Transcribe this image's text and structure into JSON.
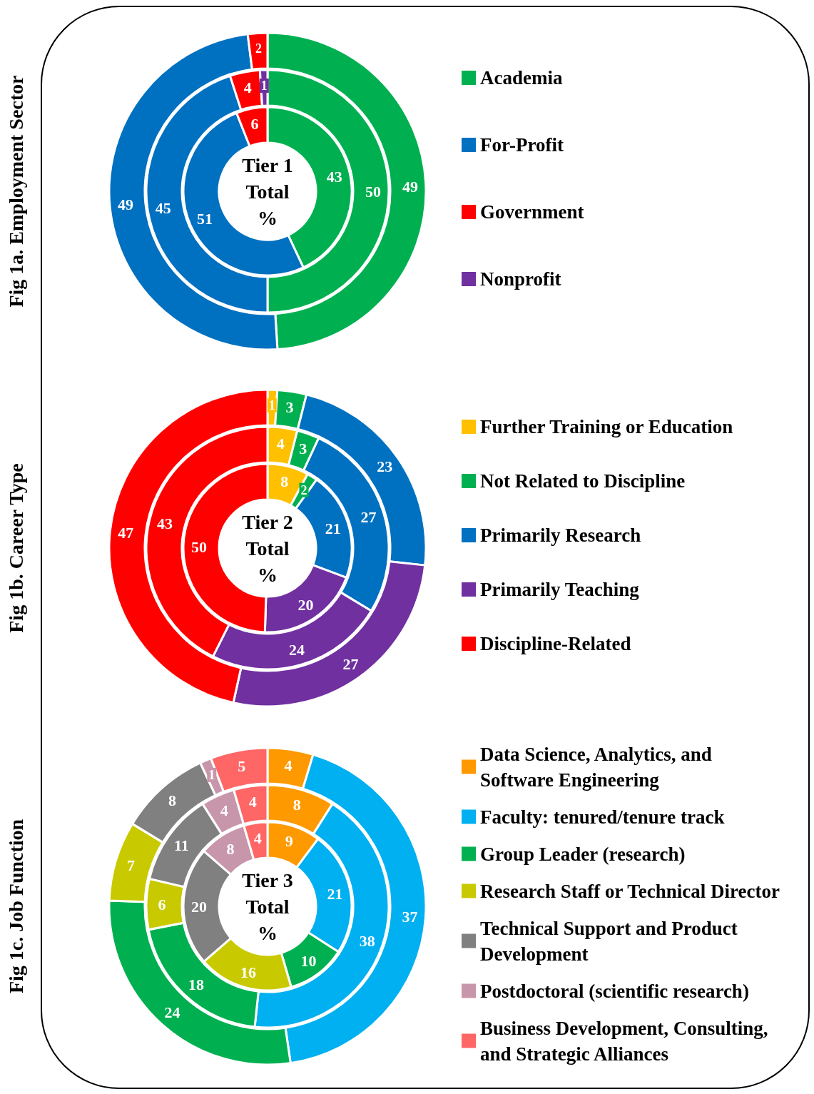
{
  "chart_data": [
    {
      "type": "donut",
      "title": "Fig 1a. Employment Sector",
      "annotations": [
        "Tier 1",
        "Total",
        "%"
      ],
      "legend": "right",
      "data_labels": true,
      "categories": [
        "Academia",
        "For-Profit",
        "Government",
        "Nonprofit"
      ],
      "colors": [
        "#00b050",
        "#0070c0",
        "#ff0000",
        "#7030a0"
      ],
      "series": [
        {
          "values": [
            43,
            51,
            6,
            null
          ]
        },
        {
          "values": [
            50,
            45,
            4,
            1
          ]
        },
        {
          "values": [
            49,
            49,
            2,
            null
          ]
        }
      ]
    },
    {
      "type": "donut",
      "title": "Fig 1b. Career Type",
      "annotations": [
        "Tier 2",
        "Total",
        "%"
      ],
      "legend": "right",
      "data_labels": true,
      "categories": [
        "Further Training or Education",
        "Not Related to Discipline",
        "Primarily Research",
        "Primarily Teaching",
        "Discipline-Related"
      ],
      "colors": [
        "#ffc000",
        "#00b050",
        "#0070c0",
        "#7030a0",
        "#ff0000"
      ],
      "series": [
        {
          "values": [
            8,
            2,
            21,
            20,
            50
          ]
        },
        {
          "values": [
            4,
            3,
            27,
            24,
            43
          ]
        },
        {
          "values": [
            1,
            3,
            23,
            27,
            47
          ]
        }
      ]
    },
    {
      "type": "donut",
      "title": "Fig 1c. Job Function",
      "annotations": [
        "Tier 3",
        "Total",
        "%"
      ],
      "legend": "right",
      "data_labels": true,
      "categories": [
        "Data Science, Analytics, and Software Engineering",
        "Faculty: tenured/tenure track",
        "Group Leader (research)",
        "Research Staff or Technical Director",
        "Technical Support and Product Development",
        "Postdoctoral (scientific research)",
        "Business Development, Consulting, and Strategic Alliances"
      ],
      "colors": [
        "#ff9900",
        "#00b0f0",
        "#00b050",
        "#c9c900",
        "#808080",
        "#c896aa",
        "#ff6666"
      ],
      "series": [
        {
          "values": [
            9,
            21,
            10,
            16,
            20,
            8,
            4
          ]
        },
        {
          "values": [
            8,
            38,
            18,
            6,
            11,
            4,
            4
          ]
        },
        {
          "values": [
            4,
            37,
            24,
            7,
            8,
            1,
            5
          ]
        }
      ]
    }
  ]
}
